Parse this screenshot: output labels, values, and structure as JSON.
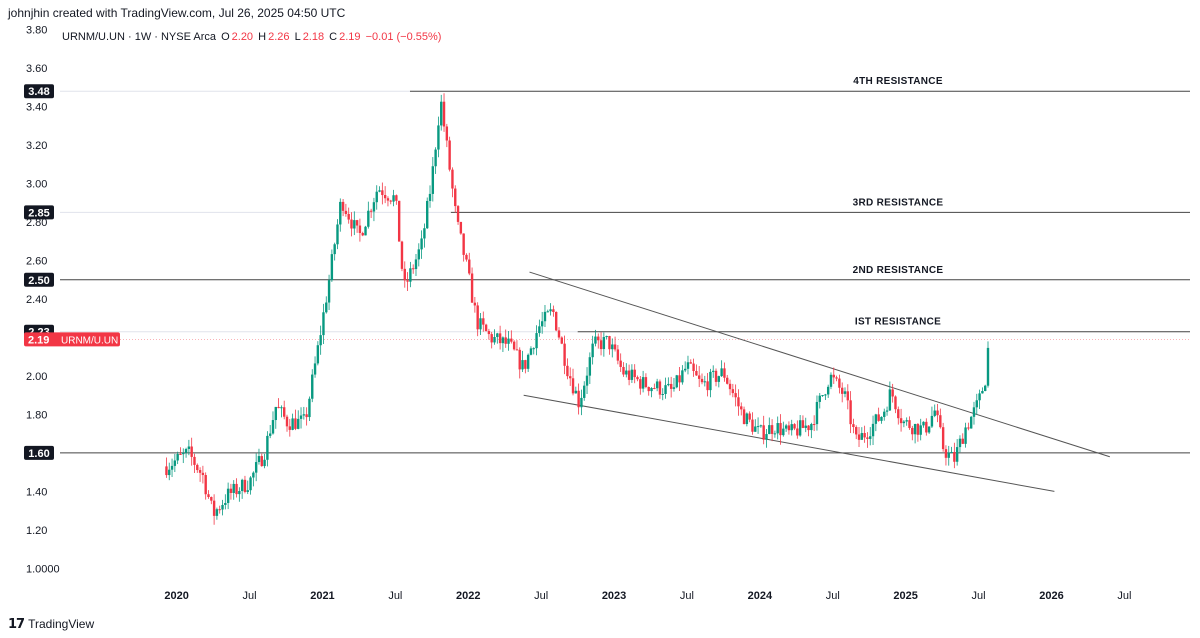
{
  "header": {
    "credit": "johnjhin created with TradingView.com, Jul 26, 2025 04:50 UTC"
  },
  "legend": {
    "symbol": "URNM/U.UN · 1W · NYSE Arca",
    "o_label": "O",
    "o": "2.20",
    "h_label": "H",
    "h": "2.26",
    "l_label": "L",
    "l": "2.18",
    "c_label": "C",
    "c": "2.19",
    "change": "−0.01 (−0.55%)"
  },
  "footer": {
    "brand": "TradingView",
    "logo_icon": "tradingview-logo-icon"
  },
  "colors": {
    "up": "#089981",
    "down": "#f23645",
    "line": "#555555",
    "tag_bg": "#131722",
    "price_tag_bg": "#f23645"
  },
  "chart_data": {
    "type": "candlestick",
    "title": "",
    "xlabel": "",
    "ylabel": "",
    "ylim": [
      0.95,
      3.85
    ],
    "xlim": [
      2019.2,
      2026.95
    ],
    "y_ticks": [
      {
        "value": 3.8,
        "label": "3.80"
      },
      {
        "value": 3.6,
        "label": "3.60"
      },
      {
        "value": 3.4,
        "label": "3.40"
      },
      {
        "value": 3.2,
        "label": "3.20"
      },
      {
        "value": 3.0,
        "label": "3.00"
      },
      {
        "value": 2.8,
        "label": "2.80"
      },
      {
        "value": 2.6,
        "label": "2.60"
      },
      {
        "value": 2.4,
        "label": "2.40"
      },
      {
        "value": 2.0,
        "label": "2.00"
      },
      {
        "value": 1.8,
        "label": "1.80"
      },
      {
        "value": 1.4,
        "label": "1.40"
      },
      {
        "value": 1.2,
        "label": "1.20"
      },
      {
        "value": 1.0,
        "label": "1.0000"
      }
    ],
    "x_ticks": [
      {
        "value": 2020.0,
        "label": "2020"
      },
      {
        "value": 2020.5,
        "label": "Jul"
      },
      {
        "value": 2021.0,
        "label": "2021"
      },
      {
        "value": 2021.5,
        "label": "Jul"
      },
      {
        "value": 2022.0,
        "label": "2022"
      },
      {
        "value": 2022.5,
        "label": "Jul"
      },
      {
        "value": 2023.0,
        "label": "2023"
      },
      {
        "value": 2023.5,
        "label": "Jul"
      },
      {
        "value": 2024.0,
        "label": "2024"
      },
      {
        "value": 2024.5,
        "label": "Jul"
      },
      {
        "value": 2025.0,
        "label": "2025"
      },
      {
        "value": 2025.5,
        "label": "Jul"
      },
      {
        "value": 2026.0,
        "label": "2026"
      },
      {
        "value": 2026.5,
        "label": "Jul"
      }
    ],
    "levels": [
      {
        "value": 3.48,
        "tag": "3.48",
        "label": "4TH RESISTANCE",
        "x_start": 2021.6
      },
      {
        "value": 2.85,
        "tag": "2.85",
        "label": "3RD RESISTANCE",
        "x_start": 2021.88
      },
      {
        "value": 2.5,
        "tag": "2.50",
        "label": "2ND RESISTANCE",
        "x_start": null
      },
      {
        "value": 2.23,
        "tag": "2.23",
        "label": "IST RESISTANCE",
        "x_start": 2022.75
      },
      {
        "value": 1.6,
        "tag": "1.60",
        "label": "",
        "x_start": null
      }
    ],
    "trendlines": [
      {
        "x1": 2022.42,
        "y1": 2.54,
        "x2": 2026.4,
        "y2": 1.58
      },
      {
        "x1": 2022.38,
        "y1": 1.9,
        "x2": 2026.02,
        "y2": 1.4
      }
    ],
    "last_price": {
      "value": 2.19,
      "label": "2.19",
      "symbol": "URNM/U.UN"
    },
    "anchors": [
      [
        2019.93,
        1.53
      ],
      [
        2020.08,
        1.6
      ],
      [
        2020.18,
        1.48
      ],
      [
        2020.25,
        1.28
      ],
      [
        2020.35,
        1.38
      ],
      [
        2020.5,
        1.45
      ],
      [
        2020.6,
        1.6
      ],
      [
        2020.68,
        1.84
      ],
      [
        2020.76,
        1.76
      ],
      [
        2020.88,
        1.76
      ],
      [
        2020.96,
        2.1
      ],
      [
        2021.05,
        2.52
      ],
      [
        2021.13,
        2.92
      ],
      [
        2021.25,
        2.72
      ],
      [
        2021.38,
        2.98
      ],
      [
        2021.5,
        2.92
      ],
      [
        2021.56,
        2.45
      ],
      [
        2021.68,
        2.68
      ],
      [
        2021.75,
        3.02
      ],
      [
        2021.81,
        3.44
      ],
      [
        2021.86,
        3.15
      ],
      [
        2021.92,
        2.8
      ],
      [
        2021.98,
        2.6
      ],
      [
        2022.06,
        2.28
      ],
      [
        2022.15,
        2.2
      ],
      [
        2022.28,
        2.16
      ],
      [
        2022.38,
        2.04
      ],
      [
        2022.48,
        2.25
      ],
      [
        2022.58,
        2.34
      ],
      [
        2022.68,
        2.04
      ],
      [
        2022.76,
        1.86
      ],
      [
        2022.86,
        2.16
      ],
      [
        2022.96,
        2.18
      ],
      [
        2023.06,
        2.02
      ],
      [
        2023.2,
        1.96
      ],
      [
        2023.4,
        1.92
      ],
      [
        2023.5,
        2.05
      ],
      [
        2023.6,
        1.95
      ],
      [
        2023.75,
        2.02
      ],
      [
        2023.88,
        1.8
      ],
      [
        2024.0,
        1.7
      ],
      [
        2024.1,
        1.74
      ],
      [
        2024.2,
        1.7
      ],
      [
        2024.35,
        1.75
      ],
      [
        2024.48,
        2.0
      ],
      [
        2024.58,
        1.9
      ],
      [
        2024.66,
        1.66
      ],
      [
        2024.72,
        1.7
      ],
      [
        2024.84,
        1.8
      ],
      [
        2024.9,
        1.92
      ],
      [
        2024.98,
        1.76
      ],
      [
        2025.05,
        1.74
      ],
      [
        2025.13,
        1.72
      ],
      [
        2025.2,
        1.82
      ],
      [
        2025.26,
        1.62
      ],
      [
        2025.33,
        1.56
      ],
      [
        2025.41,
        1.73
      ],
      [
        2025.46,
        1.8
      ],
      [
        2025.5,
        1.86
      ],
      [
        2025.55,
        2.0
      ],
      [
        2025.57,
        2.19
      ]
    ]
  }
}
